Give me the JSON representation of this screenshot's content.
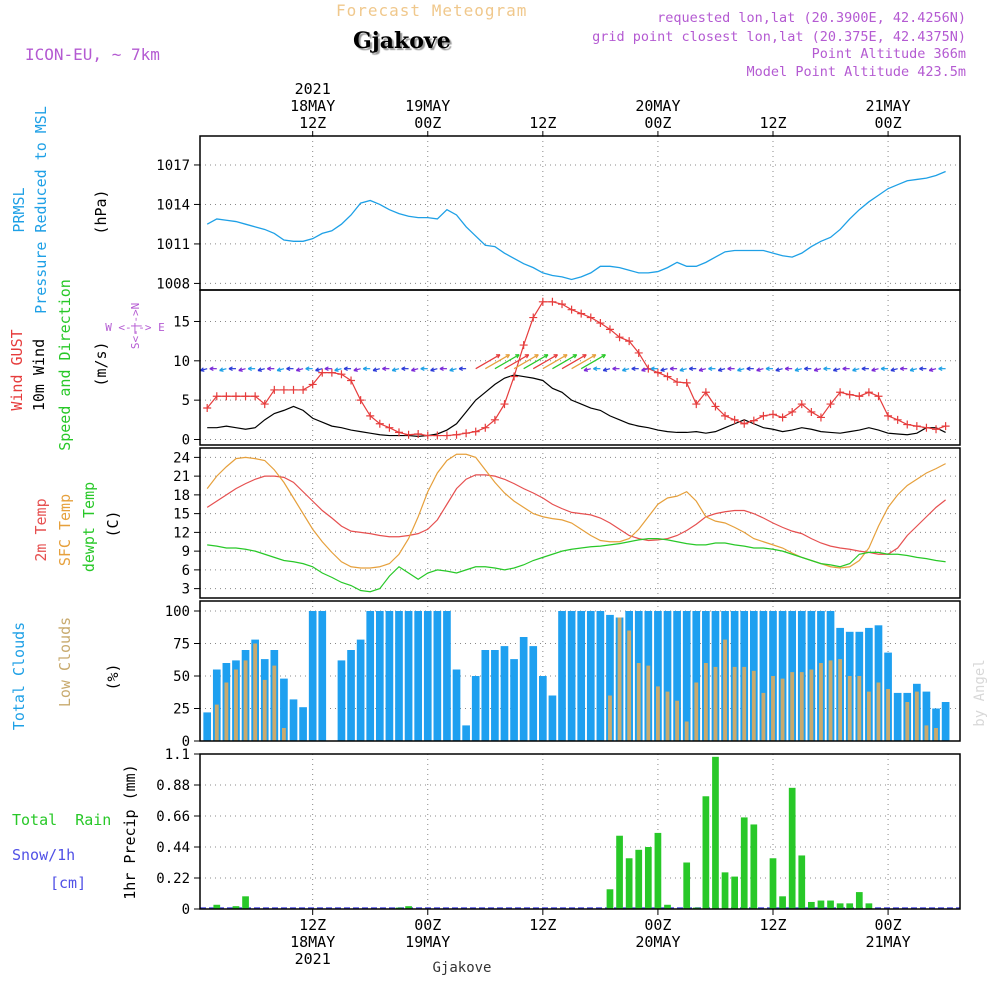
{
  "header": {
    "product_title": "Forecast Meteogram",
    "location": "Gjakove",
    "model": "ICON-EU, ~ 7km",
    "requested": "requested lon,lat (20.3900E, 42.4256N)",
    "grid_point": "grid point closest lon,lat (20.375E, 42.4375N)",
    "point_altitude": "Point Altitude 366m",
    "model_altitude": "Model Point Altitude 423.5m",
    "footer_location": "Gjakove",
    "watermark": "by Angel"
  },
  "time_axis": {
    "top_ticks": [
      {
        "hour": 12,
        "lines": [
          "2021",
          "18MAY",
          "12Z"
        ]
      },
      {
        "hour": 24,
        "lines": [
          "19MAY",
          "00Z"
        ]
      },
      {
        "hour": 36,
        "lines": [
          "12Z"
        ]
      },
      {
        "hour": 48,
        "lines": [
          "20MAY",
          "00Z"
        ]
      },
      {
        "hour": 60,
        "lines": [
          "12Z"
        ]
      },
      {
        "hour": 72,
        "lines": [
          "21MAY",
          "00Z"
        ]
      }
    ],
    "bottom_ticks": [
      {
        "hour": 12,
        "lines": [
          "12Z",
          "18MAY",
          "2021"
        ]
      },
      {
        "hour": 24,
        "lines": [
          "00Z",
          "19MAY"
        ]
      },
      {
        "hour": 36,
        "lines": [
          "12Z"
        ]
      },
      {
        "hour": 48,
        "lines": [
          "00Z",
          "20MAY"
        ]
      },
      {
        "hour": 60,
        "lines": [
          "12Z"
        ]
      },
      {
        "hour": 72,
        "lines": [
          "00Z",
          "21MAY"
        ]
      }
    ]
  },
  "labels": {
    "pressure": {
      "lines": [
        "PRMSL",
        "Pressure Reduced to MSL"
      ],
      "unit": "(hPa)"
    },
    "wind": {
      "gust": "Wind GUST",
      "wind10": "10m Wind",
      "dir": "Speed and Direction",
      "unit": "(m/s)",
      "compass_we": "W <-|-> E",
      "compass_sn": "S<-|->N"
    },
    "temp": {
      "t2m": "2m Temp",
      "sfc": "SFC Temp",
      "dew": "dewpt Temp",
      "unit": "(C)"
    },
    "cloud": {
      "total": "Total Clouds",
      "low": "Low Clouds",
      "unit": "(%)"
    },
    "precip": {
      "rain": "Total  Rain",
      "snow": "Snow/1h",
      "snow_unit": "[cm]",
      "unit": "1hr Precip (mm)"
    }
  },
  "colors": {
    "pressure": "#1ea0e6",
    "gust": "#e63c3c",
    "wind": "#000000",
    "t2m": "#e65050",
    "sfc": "#e6a03c",
    "dew": "#28c828",
    "total_cloud": "#1ea0f0",
    "low_cloud": "#c8aa6e",
    "rain": "#28c828",
    "snow": "#5050e6",
    "title": "#f0c88c",
    "info": "#b45ad2",
    "grid": "#888888"
  },
  "chart_data": [
    {
      "type": "line",
      "name": "pressure",
      "x_unit": "forecast hours from 18MAY 00Z",
      "x": [
        1,
        2,
        3,
        4,
        5,
        6,
        7,
        8,
        9,
        10,
        11,
        12,
        13,
        14,
        15,
        16,
        17,
        18,
        19,
        20,
        21,
        22,
        23,
        24,
        25,
        26,
        27,
        28,
        29,
        30,
        31,
        32,
        33,
        34,
        35,
        36,
        37,
        38,
        39,
        40,
        41,
        42,
        43,
        44,
        45,
        46,
        47,
        48,
        49,
        50,
        51,
        52,
        53,
        54,
        55,
        56,
        57,
        58,
        59,
        60,
        61,
        62,
        63,
        64,
        65,
        66,
        67,
        68,
        69,
        70,
        71,
        72,
        73,
        74,
        75,
        76,
        77,
        78
      ],
      "y": [
        1012.5,
        1012.9,
        1012.8,
        1012.7,
        1012.5,
        1012.3,
        1012.1,
        1011.8,
        1011.3,
        1011.2,
        1011.2,
        1011.4,
        1011.8,
        1012.0,
        1012.5,
        1013.2,
        1014.1,
        1014.3,
        1014.0,
        1013.6,
        1013.3,
        1013.1,
        1013.0,
        1013.0,
        1012.9,
        1013.6,
        1013.2,
        1012.3,
        1011.6,
        1010.9,
        1010.8,
        1010.3,
        1009.9,
        1009.5,
        1009.2,
        1008.8,
        1008.6,
        1008.5,
        1008.3,
        1008.5,
        1008.8,
        1009.3,
        1009.3,
        1009.2,
        1009.0,
        1008.8,
        1008.8,
        1008.9,
        1009.2,
        1009.6,
        1009.3,
        1009.3,
        1009.6,
        1010.0,
        1010.4,
        1010.5,
        1010.5,
        1010.5,
        1010.5,
        1010.3,
        1010.1,
        1010.0,
        1010.3,
        1010.8,
        1011.2,
        1011.5,
        1012.1,
        1012.9,
        1013.6,
        1014.2,
        1014.7,
        1015.2,
        1015.5,
        1015.8,
        1015.9,
        1016.0,
        1016.2,
        1016.5
      ]
    },
    {
      "type": "line",
      "name": "wind",
      "ylim": [
        0,
        19
      ],
      "gust": [
        4.0,
        5.5,
        5.5,
        5.5,
        5.5,
        5.5,
        4.5,
        6.3,
        6.3,
        6.3,
        6.3,
        7.0,
        8.5,
        8.5,
        8.3,
        7.5,
        5.0,
        3.0,
        2.0,
        1.5,
        0.9,
        0.6,
        0.7,
        0.5,
        0.5,
        0.5,
        0.6,
        0.8,
        1.0,
        1.5,
        2.5,
        4.5,
        8.0,
        12.0,
        15.5,
        17.5,
        17.5,
        17.2,
        16.5,
        16.0,
        15.5,
        14.8,
        14.0,
        13.0,
        12.5,
        11.0,
        9.0,
        8.5,
        8.0,
        7.3,
        7.2,
        4.5,
        6.0,
        4.2,
        3.0,
        2.5,
        2.0,
        2.4,
        3.0,
        3.2,
        2.8,
        3.5,
        4.5,
        3.5,
        2.8,
        4.5,
        6.0,
        5.7,
        5.5,
        6.0,
        5.5,
        3.0,
        2.5,
        1.9,
        1.7,
        1.5,
        1.3,
        1.7
      ],
      "wind10": [
        1.5,
        1.5,
        1.7,
        1.5,
        1.3,
        1.5,
        2.5,
        3.3,
        3.7,
        4.2,
        3.7,
        2.7,
        2.2,
        1.7,
        1.5,
        1.2,
        1.0,
        0.8,
        0.6,
        0.5,
        0.5,
        0.5,
        0.4,
        0.5,
        0.7,
        1.2,
        2.0,
        3.5,
        5.0,
        6.0,
        7.0,
        7.8,
        8.2,
        8.0,
        7.8,
        7.5,
        6.5,
        6.0,
        5.0,
        4.5,
        4.0,
        3.7,
        3.0,
        2.5,
        2.0,
        1.7,
        1.5,
        1.2,
        1.0,
        0.9,
        0.9,
        1.0,
        0.8,
        1.0,
        1.5,
        2.0,
        2.5,
        2.0,
        1.5,
        1.3,
        1.0,
        1.2,
        1.5,
        1.3,
        1.0,
        0.9,
        0.8,
        1.0,
        1.2,
        1.5,
        1.2,
        0.8,
        0.7,
        0.6,
        0.8,
        1.5,
        1.5,
        0.9
      ]
    },
    {
      "type": "line",
      "name": "temperature",
      "ylim": [
        1.5,
        25.5
      ],
      "t2m": [
        16.0,
        17.0,
        18.0,
        19.0,
        19.8,
        20.5,
        21.0,
        21.0,
        20.8,
        20.0,
        18.5,
        17.0,
        15.5,
        14.3,
        13.0,
        12.2,
        12.0,
        11.8,
        11.5,
        11.3,
        11.3,
        11.5,
        11.8,
        12.5,
        14.0,
        16.5,
        19.0,
        20.5,
        21.2,
        21.2,
        21.0,
        20.5,
        19.8,
        19.0,
        18.3,
        17.5,
        16.5,
        15.8,
        15.2,
        15.0,
        14.8,
        14.3,
        13.5,
        12.5,
        11.5,
        11.0,
        10.7,
        10.8,
        11.0,
        11.5,
        12.3,
        13.3,
        14.5,
        15.0,
        15.3,
        15.5,
        15.5,
        15.0,
        14.3,
        13.5,
        12.8,
        12.2,
        11.8,
        11.0,
        10.3,
        9.8,
        9.5,
        9.3,
        9.0,
        8.8,
        8.5,
        8.5,
        9.5,
        11.5,
        13.0,
        14.5,
        16.0,
        17.2
      ],
      "sfc": [
        19.0,
        21.0,
        22.5,
        23.8,
        24.0,
        23.8,
        23.5,
        22.0,
        20.0,
        17.5,
        15.0,
        12.5,
        10.5,
        8.8,
        7.3,
        6.5,
        6.3,
        6.3,
        6.5,
        7.0,
        8.5,
        11.0,
        14.5,
        18.5,
        21.5,
        23.5,
        24.5,
        24.5,
        24.0,
        22.0,
        20.0,
        18.3,
        17.0,
        16.0,
        15.0,
        14.5,
        14.2,
        14.0,
        13.5,
        12.5,
        11.5,
        10.7,
        10.5,
        10.5,
        11.0,
        12.5,
        14.5,
        16.5,
        17.5,
        17.8,
        18.5,
        17.0,
        14.5,
        13.8,
        13.5,
        12.8,
        12.0,
        11.0,
        10.5,
        10.0,
        9.5,
        8.7,
        8.0,
        7.5,
        7.0,
        6.5,
        6.3,
        6.5,
        7.5,
        9.5,
        13.0,
        16.0,
        18.0,
        19.5,
        20.5,
        21.5,
        22.2,
        23.0
      ],
      "dew": [
        10.0,
        9.8,
        9.5,
        9.5,
        9.3,
        9.0,
        8.5,
        8.0,
        7.5,
        7.3,
        7.0,
        6.5,
        5.5,
        4.8,
        4.0,
        3.5,
        2.7,
        2.5,
        3.0,
        5.0,
        6.5,
        5.5,
        4.5,
        5.5,
        6.0,
        5.8,
        5.5,
        6.0,
        6.5,
        6.5,
        6.3,
        6.0,
        6.3,
        6.8,
        7.5,
        8.0,
        8.5,
        9.0,
        9.3,
        9.5,
        9.7,
        9.8,
        10.0,
        10.2,
        10.5,
        10.8,
        11.0,
        11.0,
        10.8,
        10.5,
        10.2,
        10.0,
        10.0,
        10.3,
        10.3,
        10.0,
        9.8,
        9.5,
        9.5,
        9.3,
        9.0,
        8.5,
        8.0,
        7.5,
        7.0,
        6.8,
        6.5,
        7.0,
        8.5,
        8.8,
        8.8,
        8.5,
        8.5,
        8.3,
        8.0,
        7.8,
        7.5,
        7.3
      ]
    },
    {
      "type": "bar",
      "name": "clouds",
      "ylim": [
        0,
        100
      ],
      "total": [
        22,
        55,
        60,
        62,
        70,
        78,
        63,
        70,
        48,
        32,
        26,
        100,
        100,
        0,
        62,
        70,
        78,
        100,
        100,
        100,
        100,
        100,
        100,
        100,
        100,
        100,
        55,
        12,
        50,
        70,
        70,
        73,
        63,
        80,
        73,
        50,
        35,
        100,
        100,
        100,
        100,
        100,
        97,
        95,
        100,
        100,
        100,
        100,
        100,
        100,
        100,
        100,
        100,
        100,
        100,
        100,
        100,
        100,
        100,
        100,
        100,
        100,
        100,
        100,
        100,
        100,
        87,
        84,
        84,
        87,
        89,
        68,
        37,
        37,
        44,
        38,
        25,
        30
      ],
      "low": [
        0,
        28,
        45,
        55,
        62,
        75,
        47,
        58,
        10,
        0,
        0,
        0,
        0,
        0,
        0,
        0,
        0,
        0,
        0,
        0,
        0,
        0,
        0,
        0,
        0,
        0,
        0,
        0,
        0,
        0,
        0,
        0,
        0,
        0,
        0,
        0,
        0,
        0,
        0,
        0,
        0,
        0,
        35,
        95,
        85,
        60,
        58,
        42,
        38,
        31,
        15,
        45,
        60,
        57,
        78,
        57,
        57,
        54,
        37,
        50,
        48,
        53,
        53,
        55,
        60,
        62,
        63,
        50,
        50,
        38,
        45,
        40,
        0,
        30,
        38,
        12,
        10,
        0
      ]
    },
    {
      "type": "bar",
      "name": "precipitation",
      "ylim": [
        0,
        1.1
      ],
      "rain": [
        0,
        0.03,
        0,
        0.02,
        0.09,
        0,
        0,
        0,
        0,
        0,
        0,
        0,
        0,
        0,
        0,
        0,
        0,
        0,
        0,
        0,
        0.01,
        0.02,
        0,
        0,
        0,
        0,
        0,
        0,
        0,
        0,
        0,
        0,
        0,
        0,
        0,
        0,
        0,
        0,
        0,
        0,
        0,
        0,
        0.14,
        0.52,
        0.36,
        0.42,
        0.44,
        0.54,
        0.03,
        0,
        0.33,
        0.01,
        0.8,
        1.08,
        0.26,
        0.23,
        0.65,
        0.6,
        0,
        0.36,
        0.09,
        0.86,
        0.38,
        0.05,
        0.06,
        0.06,
        0.04,
        0.04,
        0.12,
        0.04,
        0,
        0,
        0,
        0,
        0,
        0,
        0,
        0
      ]
    }
  ]
}
